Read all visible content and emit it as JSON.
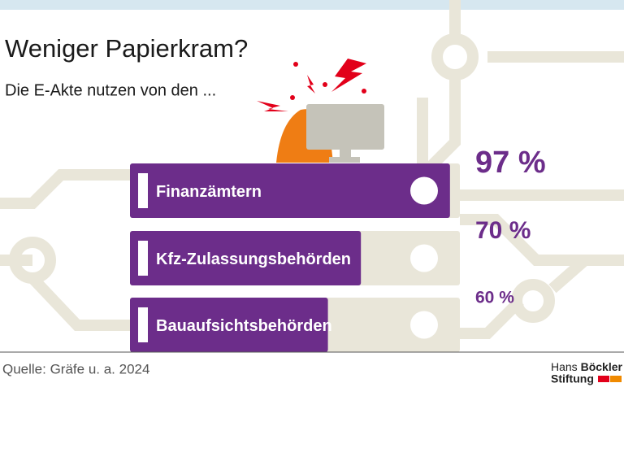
{
  "chart_data": {
    "type": "bar",
    "orientation": "horizontal",
    "title": "Weniger Papierkram?",
    "subtitle": "Die E-Akte nutzen von den ...",
    "categories": [
      "Finanzämtern",
      "Kfz-Zulassungsbehörden",
      "Bauaufsichtsbehörden"
    ],
    "values": [
      97,
      70,
      60
    ],
    "value_labels": [
      "97 %",
      "70 %",
      "60 %"
    ],
    "xlim": [
      0,
      100
    ],
    "color": "#6c2d8a",
    "source": "Quelle: Gräfe u. a. 2024"
  },
  "logo": {
    "first": "Hans",
    "second": "Böckler",
    "third": "Stiftung"
  }
}
